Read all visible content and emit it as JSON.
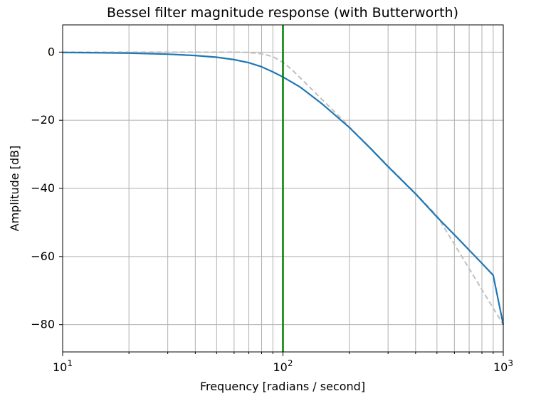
{
  "chart_data": {
    "type": "line",
    "title": "Bessel filter magnitude response (with Butterworth)",
    "xlabel": "Frequency [radians / second]",
    "ylabel": "Amplitude [dB]",
    "xscale": "log",
    "xlim": [
      10,
      1000
    ],
    "ylim": [
      -88,
      8
    ],
    "grid": "both (major and minor x)",
    "x_ticks": [
      {
        "value": 10,
        "base": "10",
        "exp": "1"
      },
      {
        "value": 100,
        "base": "10",
        "exp": "2"
      },
      {
        "value": 1000,
        "base": "10",
        "exp": "3"
      }
    ],
    "y_ticks": [
      {
        "value": 0,
        "label": "0"
      },
      {
        "value": -20,
        "label": "−20"
      },
      {
        "value": -40,
        "label": "−40"
      },
      {
        "value": -60,
        "label": "−60"
      },
      {
        "value": -80,
        "label": "−80"
      }
    ],
    "series": [
      {
        "color": "#1f77b4",
        "style": "solid",
        "x": [
          10,
          15,
          20,
          30,
          40,
          50,
          60,
          70,
          80,
          90,
          100,
          120,
          150,
          200,
          250,
          300,
          400,
          500,
          600,
          700,
          800,
          900,
          1000
        ],
        "y": [
          -0.1,
          -0.2,
          -0.3,
          -0.6,
          -1.0,
          -1.5,
          -2.2,
          -3.1,
          -4.3,
          -5.8,
          -7.3,
          -10.3,
          -15.1,
          -22.1,
          -28.3,
          -33.6,
          -41.6,
          -48.4,
          -53.6,
          -58.1,
          -62.0,
          -65.5,
          -80.0
        ]
      },
      {
        "color": "#c0c0c0",
        "style": "dashed",
        "x": [
          10,
          20,
          30,
          40,
          50,
          60,
          70,
          80,
          90,
          100,
          110,
          120,
          140,
          160,
          180,
          200,
          250,
          300,
          400,
          500,
          1000
        ],
        "y": [
          0,
          0,
          0,
          0,
          0,
          0,
          -0.1,
          -0.5,
          -1.3,
          -3.0,
          -5.2,
          -7.6,
          -11.9,
          -15.6,
          -18.9,
          -21.9,
          -28.2,
          -33.4,
          -41.5,
          -48.0,
          -80.0
        ]
      }
    ],
    "vline": {
      "x": 100,
      "color": "#008000"
    }
  }
}
